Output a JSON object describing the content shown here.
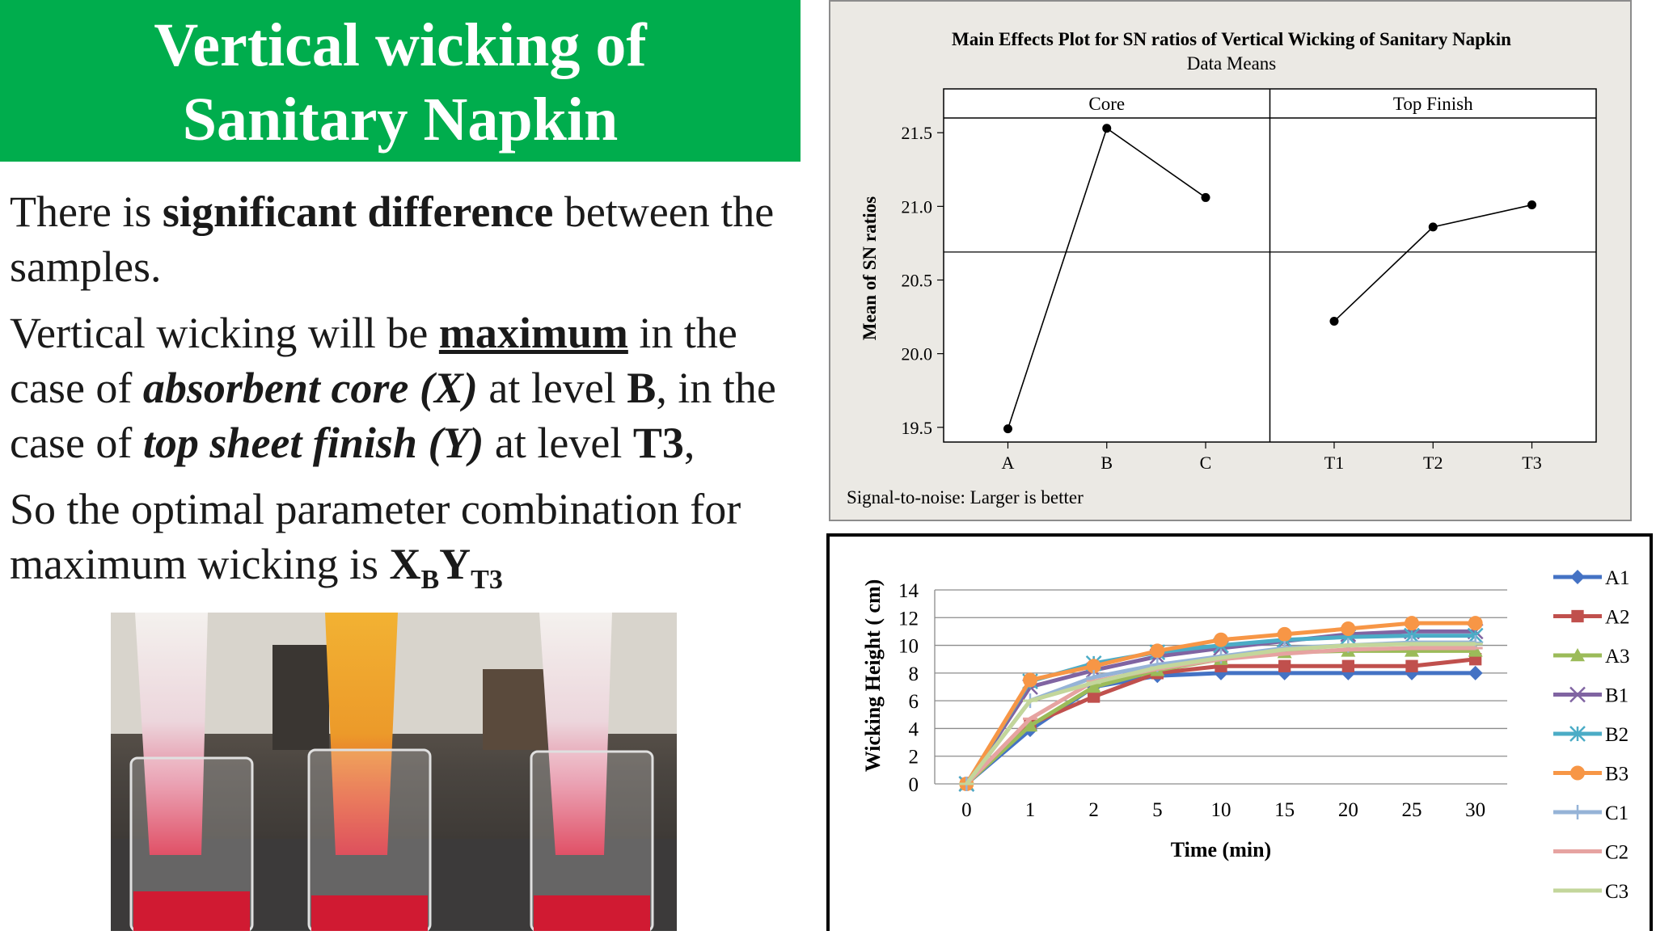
{
  "slide": {
    "title_line1": "Vertical wicking of",
    "title_line2": "Sanitary Napkin",
    "p1": {
      "a": "There is ",
      "b": "significant difference",
      "c": " between the samples."
    },
    "p2": {
      "a": "Vertical wicking will be ",
      "b": "maximum",
      "c": " in the case of ",
      "d": "absorbent core (X)",
      "e": " at level ",
      "f": "B",
      "g": ", in the case of ",
      "h": "top sheet finish (Y)",
      "i": " at level ",
      "j": "T3",
      "k": ","
    },
    "p3": {
      "a": "So the optimal parameter combination for maximum wicking is ",
      "b": "X",
      "c": "B",
      "d": "Y",
      "e": "T3"
    }
  },
  "chart_data": [
    {
      "type": "line",
      "title": "Main Effects Plot for SN ratios of Vertical Wicking of Sanitary Napkin",
      "subtitle": "Data Means",
      "ylabel": "Mean of SN ratios",
      "ylim": [
        19.4,
        21.6
      ],
      "yticks": [
        19.5,
        20.0,
        20.5,
        21.0,
        21.5
      ],
      "reference_line": 20.69,
      "footnote": "Signal-to-noise: Larger is better",
      "panels": [
        {
          "name": "Core",
          "categories": [
            "A",
            "B",
            "C"
          ],
          "values": [
            19.49,
            21.53,
            21.06
          ]
        },
        {
          "name": "Top Finish",
          "categories": [
            "T1",
            "T2",
            "T3"
          ],
          "values": [
            20.22,
            20.86,
            21.01
          ]
        }
      ],
      "grid": false
    },
    {
      "type": "line",
      "title": "",
      "xlabel": "Time (min)",
      "ylabel": "Wicking Height ( cm)",
      "categories": [
        "0",
        "1",
        "2",
        "5",
        "10",
        "15",
        "20",
        "25",
        "30"
      ],
      "ylim": [
        0,
        14
      ],
      "yticks": [
        0,
        2,
        4,
        6,
        8,
        10,
        12,
        14
      ],
      "grid": true,
      "legend": "right",
      "series": [
        {
          "name": "A1",
          "color": "#4472c4",
          "marker": "diamond",
          "values": [
            0,
            3.9,
            7.0,
            7.8,
            8.0,
            8.0,
            8.0,
            8.0,
            8.0
          ]
        },
        {
          "name": "A2",
          "color": "#c0504d",
          "marker": "square",
          "values": [
            0,
            4.3,
            6.3,
            8.0,
            8.5,
            8.5,
            8.5,
            8.5,
            9.0
          ]
        },
        {
          "name": "A3",
          "color": "#9bbb59",
          "marker": "triangle",
          "values": [
            0,
            4.2,
            7.0,
            8.2,
            9.0,
            9.5,
            9.6,
            9.6,
            9.6
          ]
        },
        {
          "name": "B1",
          "color": "#8064a2",
          "marker": "x",
          "values": [
            0,
            7.0,
            8.2,
            9.2,
            9.8,
            10.3,
            10.8,
            11.0,
            11.0
          ]
        },
        {
          "name": "B2",
          "color": "#4bacc6",
          "marker": "star",
          "values": [
            0,
            7.4,
            8.7,
            9.5,
            10.0,
            10.4,
            10.6,
            10.7,
            10.7
          ]
        },
        {
          "name": "B3",
          "color": "#f79646",
          "marker": "circle",
          "values": [
            0,
            7.5,
            8.5,
            9.6,
            10.4,
            10.8,
            11.2,
            11.6,
            11.6
          ]
        },
        {
          "name": "C1",
          "color": "#95b3d7",
          "marker": "plus",
          "values": [
            0,
            6.0,
            7.7,
            8.6,
            9.2,
            9.8,
            10.0,
            10.2,
            10.2
          ]
        },
        {
          "name": "C2",
          "color": "#e6a3a1",
          "marker": "dash",
          "values": [
            0,
            4.7,
            7.4,
            8.3,
            9.0,
            9.4,
            9.7,
            9.8,
            9.8
          ]
        },
        {
          "name": "C3",
          "color": "#c3d69b",
          "marker": "dash",
          "values": [
            0,
            6.0,
            7.3,
            8.4,
            9.1,
            9.7,
            10.0,
            10.1,
            10.1
          ]
        }
      ]
    }
  ]
}
